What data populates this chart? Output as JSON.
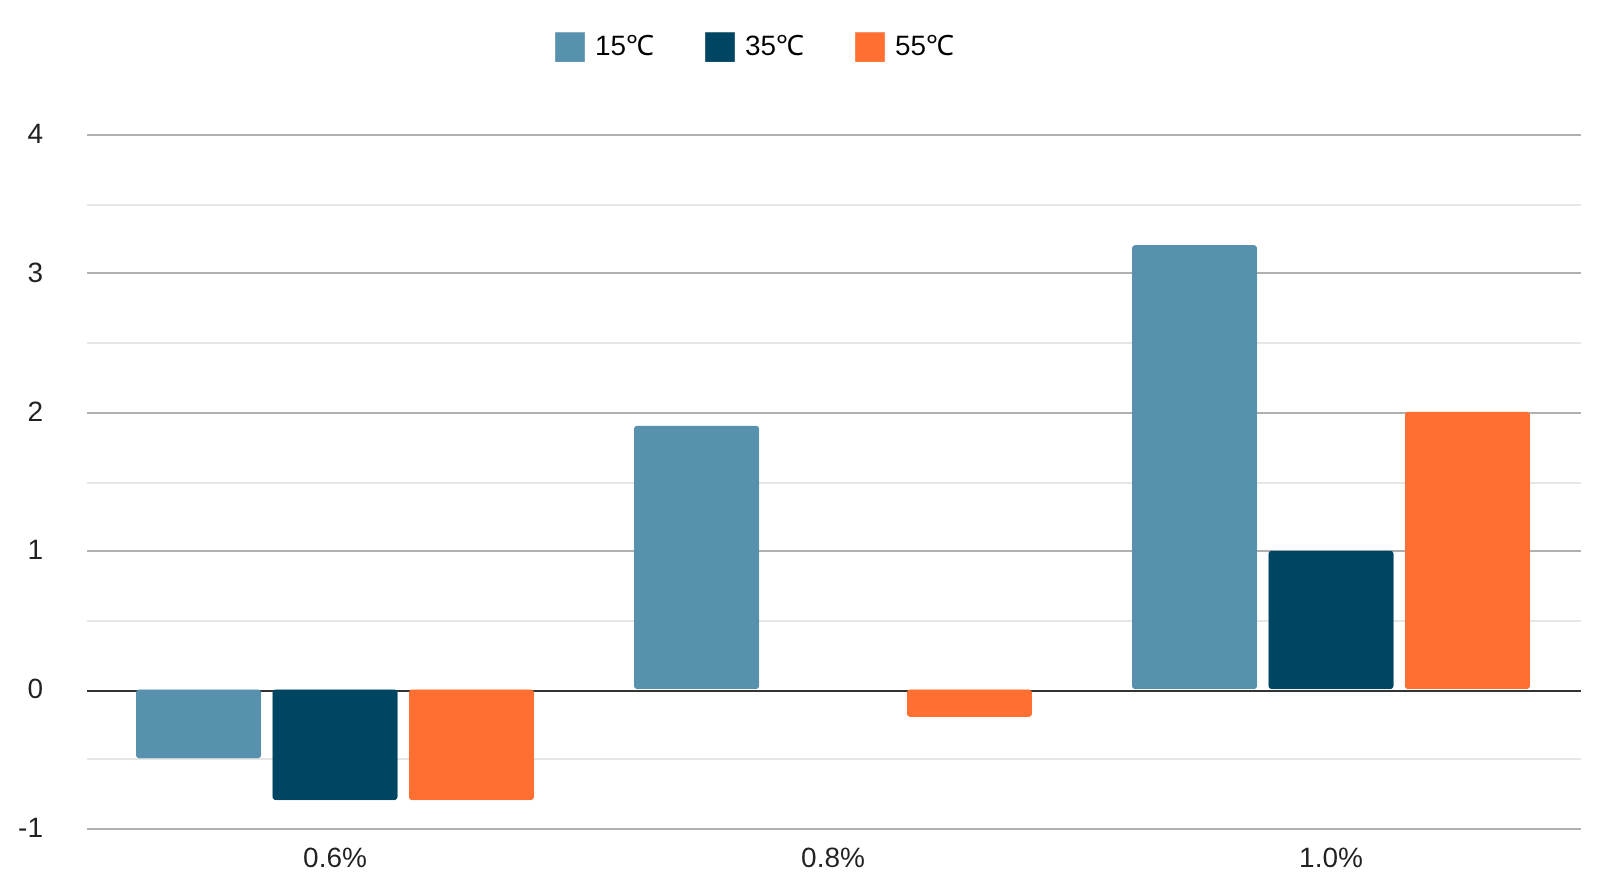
{
  "chart_data": {
    "type": "bar",
    "categories": [
      "0.6%",
      "0.8%",
      "1.0%"
    ],
    "series": [
      {
        "name": "15℃",
        "color": "#5891ad",
        "values": [
          -0.5,
          1.9,
          3.2
        ]
      },
      {
        "name": "35℃",
        "color": "#004561",
        "values": [
          -0.8,
          null,
          1.0
        ]
      },
      {
        "name": "55℃",
        "color": "#ff6f31",
        "values": [
          -0.8,
          -0.2,
          2.0
        ]
      }
    ],
    "ylim": [
      -1,
      4
    ],
    "yticks": [
      -1,
      {
        "value": -0.5,
        "label": null
      },
      0,
      {
        "value": 0.5,
        "label": null
      },
      1,
      {
        "value": 1.5,
        "label": null
      },
      2,
      {
        "value": 2.5,
        "label": null
      },
      3,
      {
        "value": 3.5,
        "label": null
      },
      4
    ],
    "grid": "y",
    "legend": "top"
  }
}
